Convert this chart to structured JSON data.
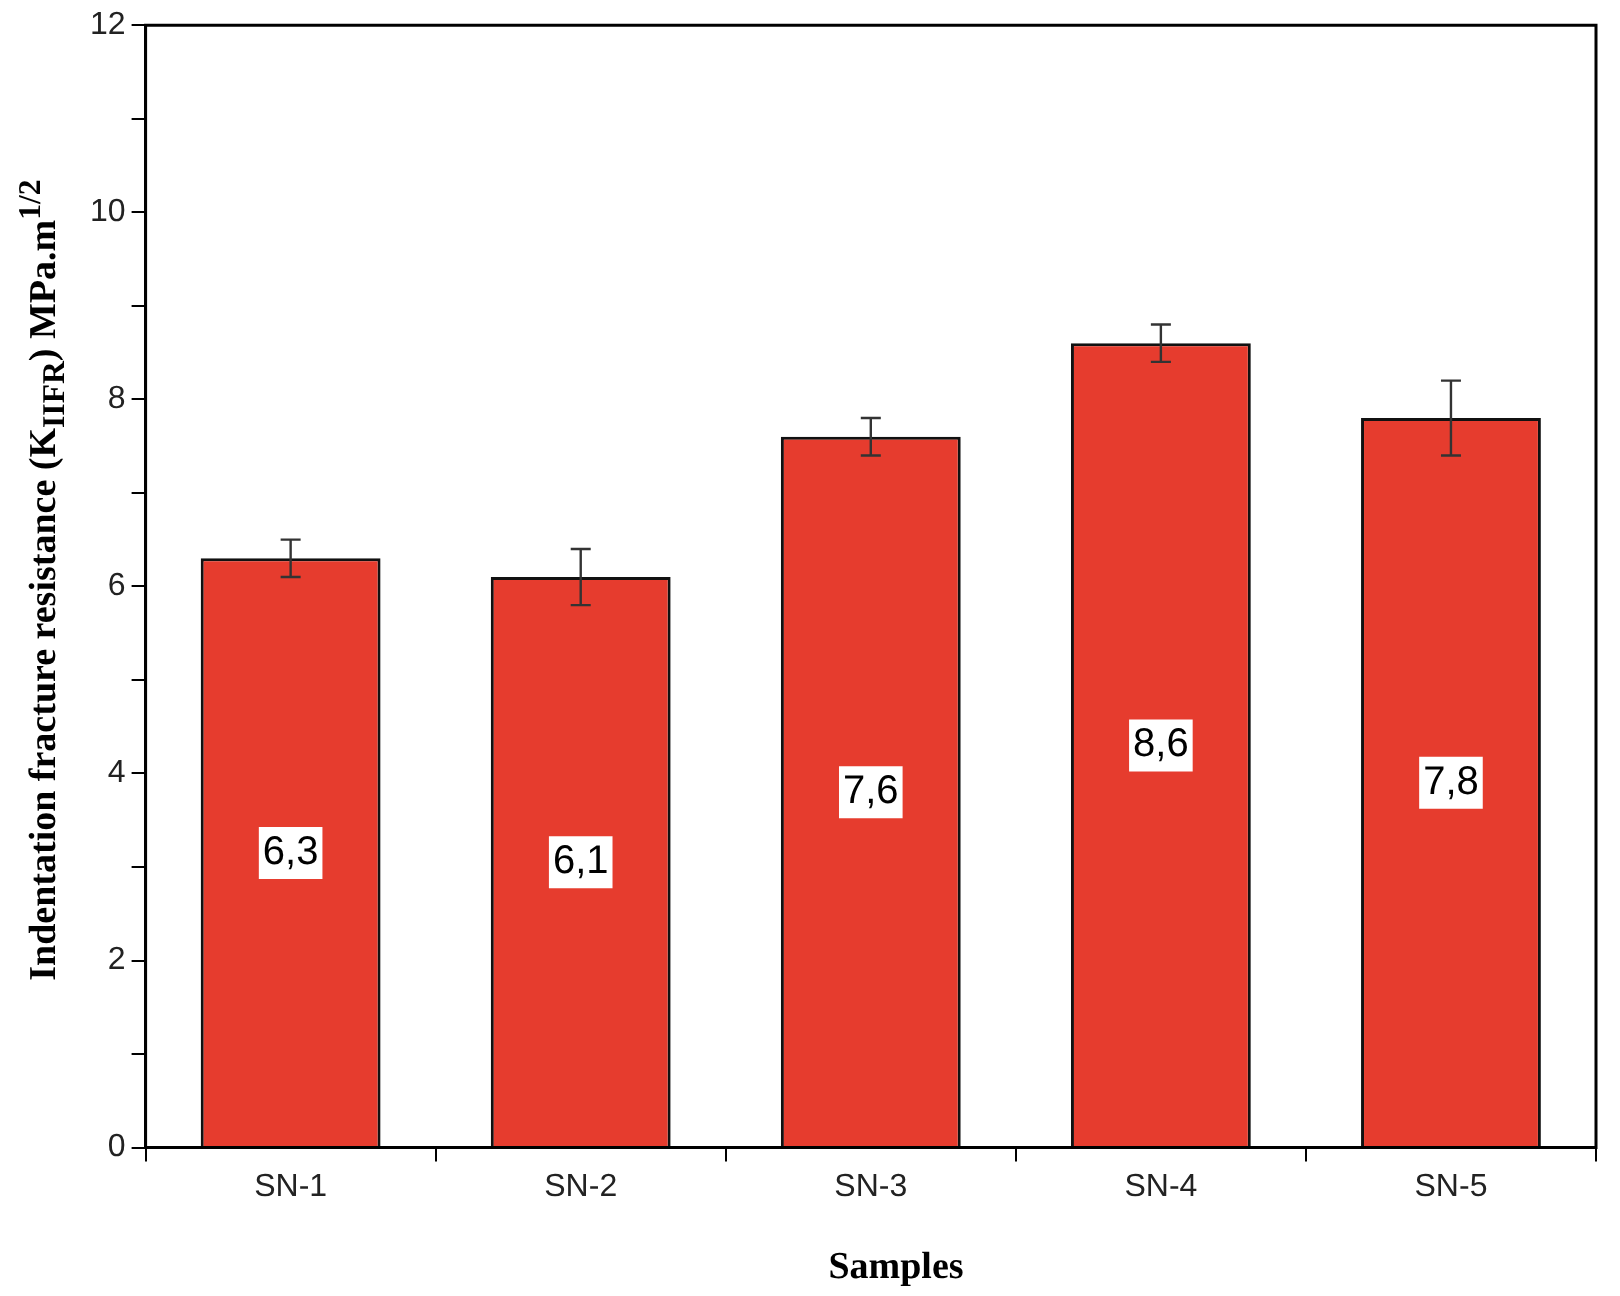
{
  "chart_data": {
    "type": "bar",
    "xlabel": "Samples",
    "ylabel": "Indentation fracture resistance (K$_{IIFR}$) MPa.m$^{1/2}$",
    "categories": [
      "SN-1",
      "SN-2",
      "SN-3",
      "SN-4",
      "SN-5"
    ],
    "values": [
      6.3,
      6.1,
      7.6,
      8.6,
      7.8
    ],
    "errors": [
      0.2,
      0.3,
      0.2,
      0.2,
      0.4
    ],
    "value_labels": [
      "6,3",
      "6,1",
      "7,6",
      "8,6",
      "7,8"
    ],
    "color": "#e63c2e",
    "ylim": [
      0,
      12
    ],
    "yticks": [
      0,
      {
        "value": 1,
        "label": null
      },
      2,
      {
        "value": 3,
        "label": null
      },
      4,
      {
        "value": 5,
        "label": null
      },
      6,
      {
        "value": 7,
        "label": null
      },
      8,
      {
        "value": 9,
        "label": null
      },
      10,
      {
        "value": 11,
        "label": null
      },
      12
    ],
    "grid": false,
    "legend": false
  }
}
